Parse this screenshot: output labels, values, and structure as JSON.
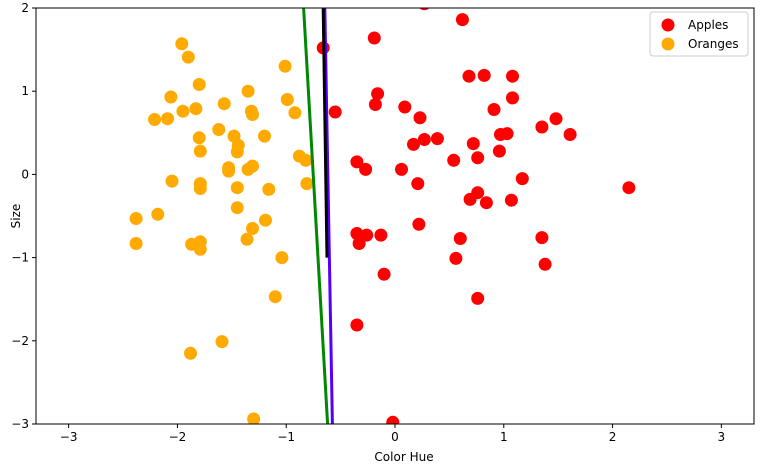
{
  "chart_data": {
    "type": "scatter",
    "xlabel": "Color Hue",
    "ylabel": "Size",
    "xlim": [
      -3.3,
      3.3
    ],
    "ylim": [
      -3,
      2
    ],
    "xticks": [
      -3,
      -2,
      -1,
      0,
      1,
      2,
      3
    ],
    "yticks": [
      -3,
      -2,
      -1,
      0,
      1,
      2
    ],
    "xtick_labels": [
      "−3",
      "−2",
      "−1",
      "0",
      "1",
      "2",
      "3"
    ],
    "ytick_labels": [
      "−3",
      "−2",
      "−1",
      "0",
      "1",
      "2"
    ],
    "grid": false,
    "legend": "top-right",
    "series": [
      {
        "name": "Apples",
        "color": "#ff0000",
        "points": [
          [
            0.27,
            2.05
          ],
          [
            0.62,
            1.86
          ],
          [
            -0.19,
            1.64
          ],
          [
            -0.66,
            1.52
          ],
          [
            -0.55,
            0.75
          ],
          [
            0.68,
            1.18
          ],
          [
            0.82,
            1.19
          ],
          [
            1.08,
            1.18
          ],
          [
            -0.16,
            0.97
          ],
          [
            1.08,
            0.92
          ],
          [
            -0.18,
            0.84
          ],
          [
            0.09,
            0.81
          ],
          [
            0.91,
            0.78
          ],
          [
            0.23,
            0.68
          ],
          [
            1.48,
            0.67
          ],
          [
            1.35,
            0.57
          ],
          [
            1.61,
            0.48
          ],
          [
            0.97,
            0.48
          ],
          [
            1.03,
            0.49
          ],
          [
            0.39,
            0.43
          ],
          [
            0.27,
            0.42
          ],
          [
            0.17,
            0.36
          ],
          [
            0.72,
            0.37
          ],
          [
            0.96,
            0.28
          ],
          [
            0.54,
            0.17
          ],
          [
            0.76,
            0.2
          ],
          [
            -0.35,
            0.15
          ],
          [
            -0.27,
            0.06
          ],
          [
            0.06,
            0.06
          ],
          [
            1.17,
            -0.05
          ],
          [
            0.21,
            -0.11
          ],
          [
            2.15,
            -0.16
          ],
          [
            0.76,
            -0.22
          ],
          [
            0.69,
            -0.3
          ],
          [
            0.84,
            -0.34
          ],
          [
            1.07,
            -0.31
          ],
          [
            0.22,
            -0.6
          ],
          [
            -0.35,
            -0.71
          ],
          [
            -0.26,
            -0.73
          ],
          [
            -0.13,
            -0.73
          ],
          [
            -0.33,
            -0.83
          ],
          [
            0.6,
            -0.77
          ],
          [
            1.35,
            -0.76
          ],
          [
            0.56,
            -1.01
          ],
          [
            1.38,
            -1.08
          ],
          [
            -0.1,
            -1.2
          ],
          [
            0.76,
            -1.49
          ],
          [
            -0.35,
            -1.81
          ],
          [
            -0.02,
            -2.98
          ]
        ]
      },
      {
        "name": "Oranges",
        "color": "#ffaa00",
        "points": [
          [
            -1.96,
            1.57
          ],
          [
            -1.9,
            1.41
          ],
          [
            -1.01,
            1.3
          ],
          [
            -1.8,
            1.08
          ],
          [
            -1.35,
            1.0
          ],
          [
            -2.06,
            0.93
          ],
          [
            -0.99,
            0.9
          ],
          [
            -1.57,
            0.85
          ],
          [
            -1.95,
            0.76
          ],
          [
            -1.83,
            0.79
          ],
          [
            -1.32,
            0.76
          ],
          [
            -1.31,
            0.72
          ],
          [
            -0.92,
            0.74
          ],
          [
            -2.21,
            0.66
          ],
          [
            -2.09,
            0.67
          ],
          [
            -1.62,
            0.54
          ],
          [
            -1.48,
            0.46
          ],
          [
            -1.2,
            0.46
          ],
          [
            -1.8,
            0.44
          ],
          [
            -1.44,
            0.35
          ],
          [
            -1.45,
            0.27
          ],
          [
            -1.79,
            0.28
          ],
          [
            -0.88,
            0.22
          ],
          [
            -0.82,
            0.17
          ],
          [
            -1.31,
            0.1
          ],
          [
            -1.53,
            0.08
          ],
          [
            -1.53,
            0.04
          ],
          [
            -1.35,
            0.06
          ],
          [
            -2.05,
            -0.08
          ],
          [
            -1.79,
            -0.11
          ],
          [
            -0.81,
            -0.11
          ],
          [
            -1.79,
            -0.17
          ],
          [
            -1.45,
            -0.16
          ],
          [
            -1.16,
            -0.18
          ],
          [
            -1.45,
            -0.4
          ],
          [
            -2.38,
            -0.53
          ],
          [
            -2.18,
            -0.48
          ],
          [
            -1.19,
            -0.55
          ],
          [
            -1.31,
            -0.65
          ],
          [
            -1.36,
            -0.78
          ],
          [
            -1.79,
            -0.81
          ],
          [
            -2.38,
            -0.83
          ],
          [
            -1.87,
            -0.84
          ],
          [
            -1.79,
            -0.9
          ],
          [
            -1.04,
            -1.0
          ],
          [
            -1.1,
            -1.47
          ],
          [
            -1.59,
            -2.01
          ],
          [
            -1.88,
            -2.15
          ],
          [
            -1.3,
            -2.94
          ]
        ]
      }
    ],
    "lines": [
      {
        "color": "#008800",
        "points": [
          [
            -0.84,
            2.0
          ],
          [
            -0.62,
            -3.0
          ]
        ]
      },
      {
        "color": "#5500ff",
        "points": [
          [
            -0.645,
            2.0
          ],
          [
            -0.575,
            -3.0
          ]
        ]
      },
      {
        "color": "#000000",
        "points": [
          [
            -0.66,
            2.0
          ],
          [
            -0.625,
            -1.0
          ]
        ]
      }
    ]
  }
}
